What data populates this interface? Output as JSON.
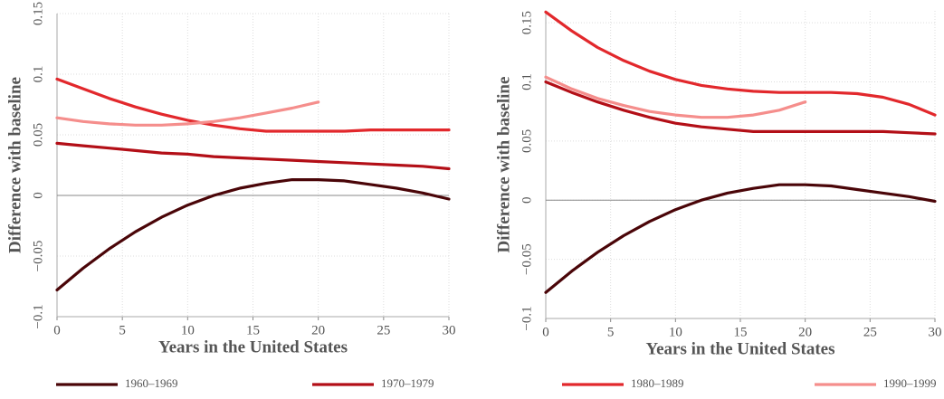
{
  "chart_data": [
    {
      "type": "line",
      "xlabel": "Years in the United States",
      "ylabel": "Difference with baseline",
      "x": [
        0,
        2,
        4,
        6,
        8,
        10,
        12,
        14,
        16,
        18,
        20,
        22,
        24,
        26,
        28,
        30
      ],
      "xlim": [
        0,
        30
      ],
      "xticks": [
        0,
        5,
        10,
        15,
        20,
        25,
        30
      ],
      "ylim": [
        -0.1,
        0.15
      ],
      "yticks": [
        {
          "value": -0.1,
          "label": "−0.1"
        },
        {
          "value": -0.05,
          "label": "−0.05"
        },
        0,
        0.05,
        0.1,
        0.15
      ],
      "grid": true,
      "reference_line": 0,
      "series": [
        {
          "name": "1960–1969",
          "color": "#4a0508",
          "values": [
            -0.078,
            -0.06,
            -0.044,
            -0.03,
            -0.018,
            -0.008,
            0.0,
            0.006,
            0.01,
            0.013,
            0.013,
            0.012,
            0.009,
            0.006,
            0.002,
            -0.003
          ]
        },
        {
          "name": "1970–1979",
          "color": "#b30f17",
          "values": [
            0.043,
            0.041,
            0.039,
            0.037,
            0.035,
            0.034,
            0.032,
            0.031,
            0.03,
            0.029,
            0.028,
            0.027,
            0.026,
            0.025,
            0.024,
            0.022
          ]
        },
        {
          "name": "1980–1989",
          "color": "#e2282c",
          "values": [
            0.096,
            0.088,
            0.08,
            0.073,
            0.067,
            0.062,
            0.058,
            0.055,
            0.053,
            0.053,
            0.053,
            0.053,
            0.054,
            0.054,
            0.054,
            0.054
          ]
        },
        {
          "name": "1990–1999",
          "color": "#f58e8c",
          "values": [
            0.064,
            0.061,
            0.059,
            0.058,
            0.058,
            0.059,
            0.061,
            0.064,
            0.068,
            0.072,
            0.077,
            null,
            null,
            null,
            null,
            null
          ]
        }
      ]
    },
    {
      "type": "line",
      "xlabel": "Years in the United States",
      "ylabel": "Difference with baseline",
      "x": [
        0,
        2,
        4,
        6,
        8,
        10,
        12,
        14,
        16,
        18,
        20,
        22,
        24,
        26,
        28,
        30
      ],
      "xlim": [
        0,
        30
      ],
      "xticks": [
        0,
        5,
        10,
        15,
        20,
        25,
        30
      ],
      "ylim": [
        -0.1,
        0.16
      ],
      "yticks": [
        {
          "value": -0.1,
          "label": "−0.1"
        },
        {
          "value": -0.05,
          "label": "−0.05"
        },
        0,
        0.05,
        0.1,
        0.15
      ],
      "grid": true,
      "reference_line": 0,
      "series": [
        {
          "color": "#4a0508",
          "values": [
            -0.078,
            -0.06,
            -0.044,
            -0.03,
            -0.018,
            -0.008,
            0.0,
            0.006,
            0.01,
            0.013,
            0.013,
            0.012,
            0.009,
            0.006,
            0.003,
            -0.001
          ]
        },
        {
          "color": "#b30f17",
          "values": [
            0.1,
            0.091,
            0.083,
            0.076,
            0.07,
            0.065,
            0.062,
            0.06,
            0.058,
            0.058,
            0.058,
            0.058,
            0.058,
            0.058,
            0.057,
            0.056
          ]
        },
        {
          "color": "#e2282c",
          "values": [
            0.159,
            0.143,
            0.129,
            0.118,
            0.109,
            0.102,
            0.097,
            0.094,
            0.092,
            0.091,
            0.091,
            0.091,
            0.09,
            0.087,
            0.081,
            0.072
          ]
        },
        {
          "color": "#f58e8c",
          "values": [
            0.104,
            0.094,
            0.086,
            0.08,
            0.075,
            0.072,
            0.07,
            0.07,
            0.072,
            0.076,
            0.083,
            null,
            null,
            null,
            null,
            null
          ]
        }
      ]
    }
  ]
}
